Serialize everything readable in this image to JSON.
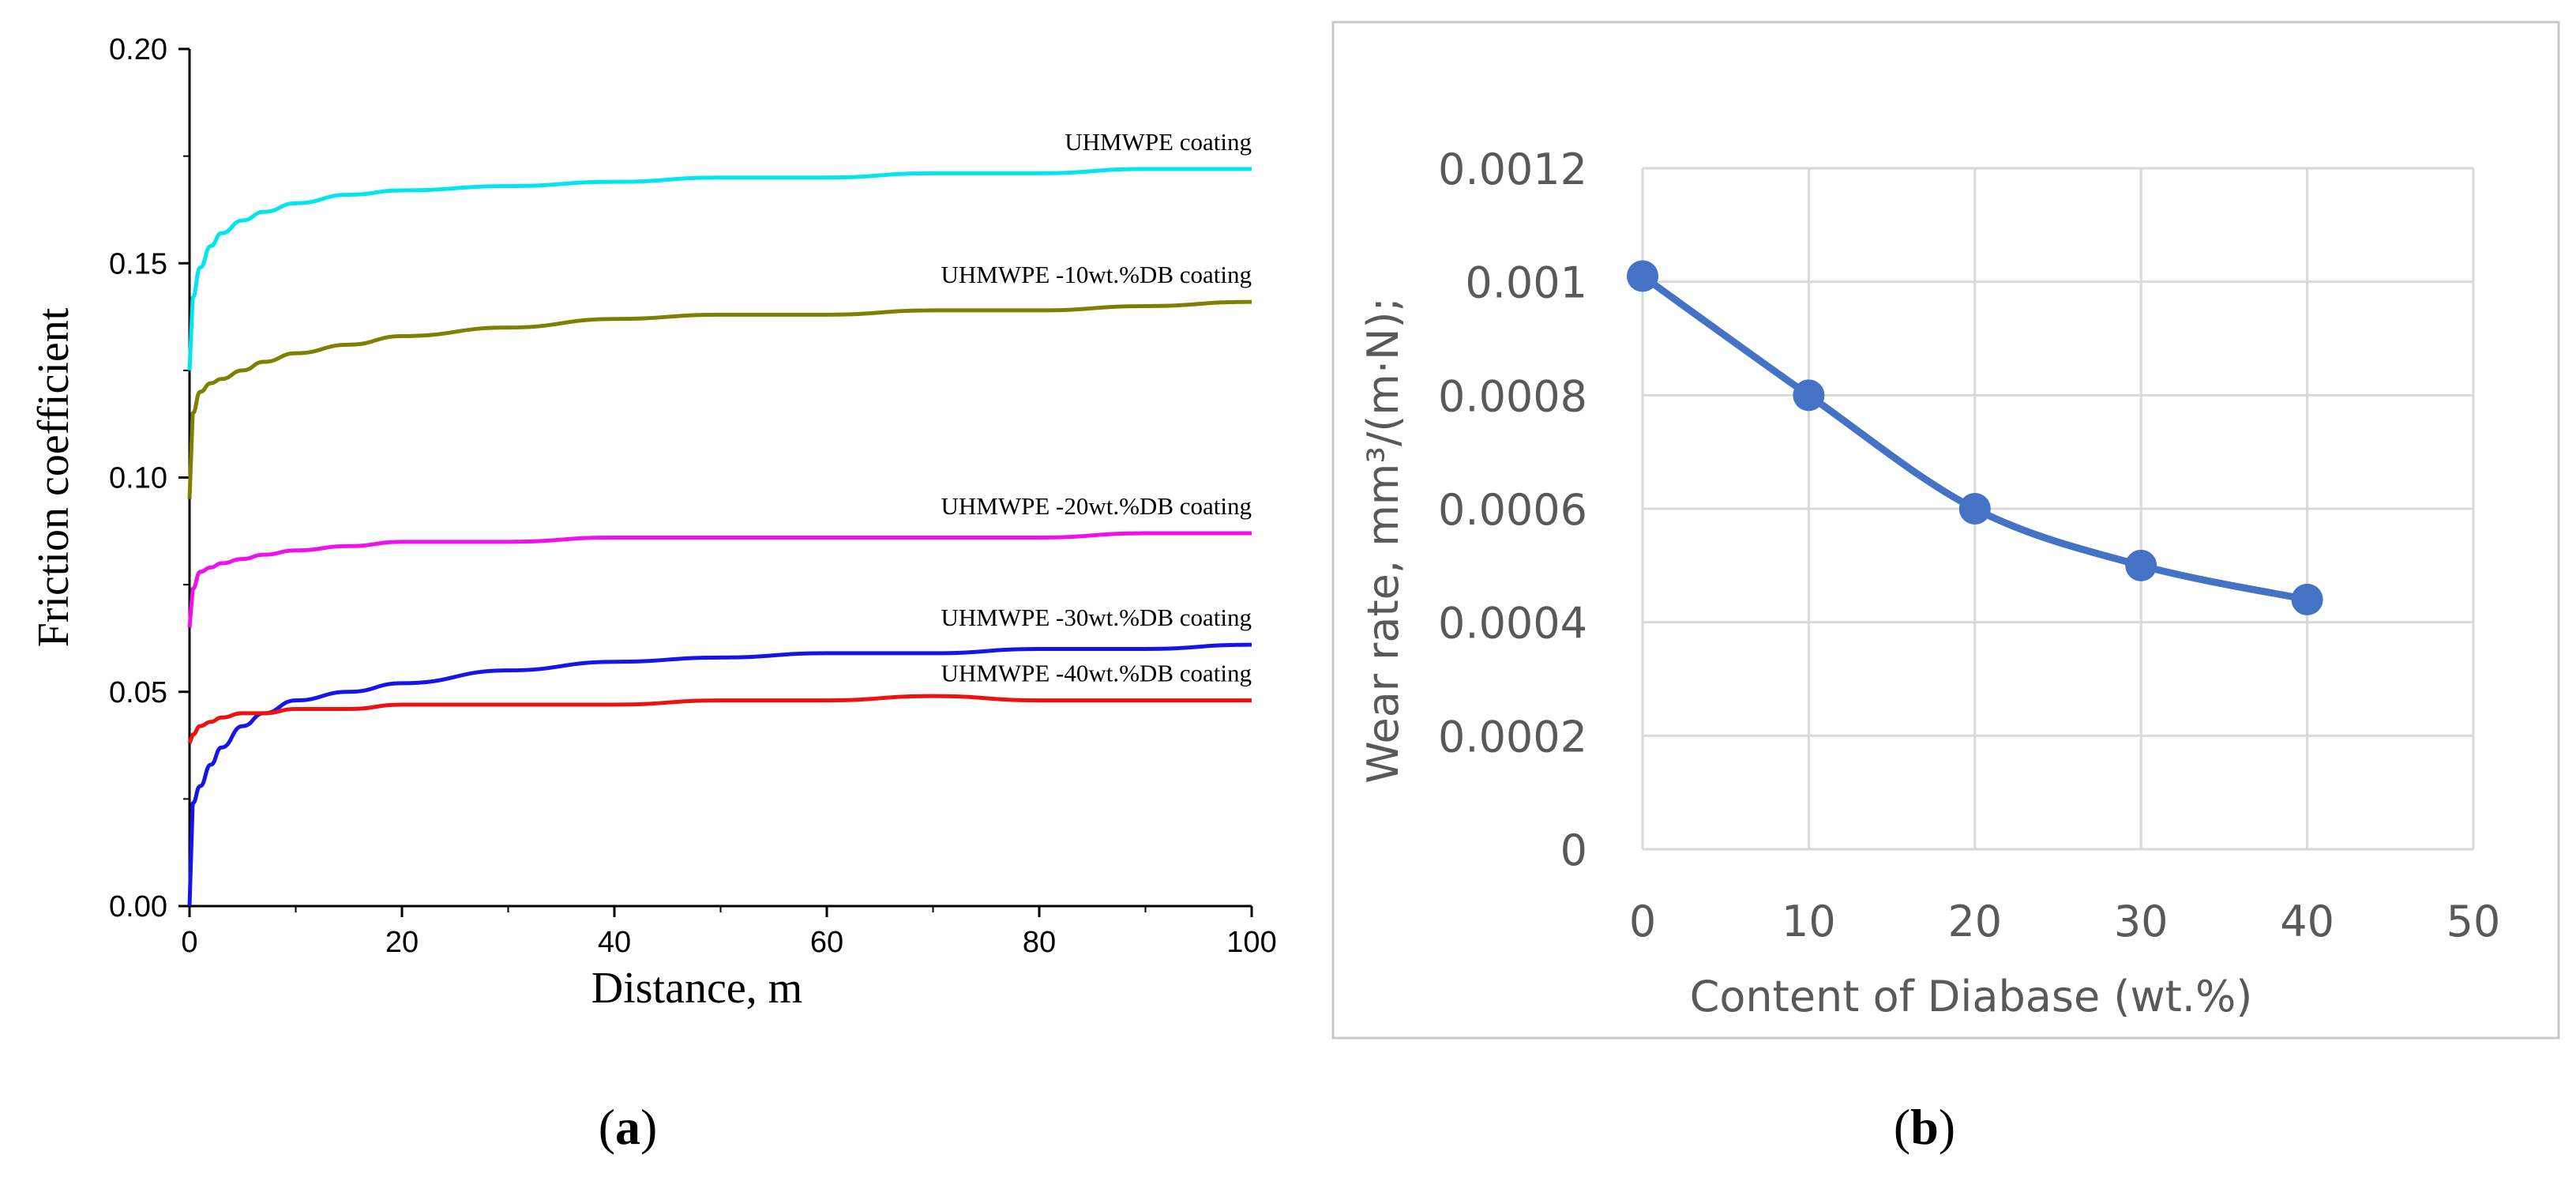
{
  "panels": {
    "a_caption": "a",
    "b_caption": "b"
  },
  "chart_data": [
    {
      "type": "line",
      "panel": "a",
      "title": "",
      "xlabel": "Distance, m",
      "ylabel": "Friction coefficient",
      "xlim": [
        0,
        100
      ],
      "ylim": [
        0,
        0.2
      ],
      "xticks": [
        "0",
        "20",
        "40",
        "60",
        "80",
        "100"
      ],
      "yticks": [
        "0.00",
        "0.05",
        "0.10",
        "0.15",
        "0.20"
      ],
      "grid": false,
      "legend": "inline labels near curve ends",
      "x": [
        0,
        0.3,
        1,
        2,
        3,
        5,
        7,
        10,
        15,
        20,
        30,
        40,
        50,
        60,
        70,
        80,
        90,
        100
      ],
      "series": [
        {
          "name": "UHMWPE coating",
          "color": "#00e5ee",
          "values": [
            0.125,
            0.142,
            0.149,
            0.154,
            0.157,
            0.16,
            0.162,
            0.164,
            0.166,
            0.167,
            0.168,
            0.169,
            0.17,
            0.17,
            0.171,
            0.171,
            0.172,
            0.172
          ]
        },
        {
          "name": "UHMWPE -10wt.%DB coating",
          "color": "#808000",
          "values": [
            0.095,
            0.115,
            0.12,
            0.122,
            0.123,
            0.125,
            0.127,
            0.129,
            0.131,
            0.133,
            0.135,
            0.137,
            0.138,
            0.138,
            0.139,
            0.139,
            0.14,
            0.141
          ]
        },
        {
          "name": "UHMWPE -20wt.%DB coating",
          "color": "#ee11ee",
          "values": [
            0.065,
            0.074,
            0.078,
            0.079,
            0.08,
            0.081,
            0.082,
            0.083,
            0.084,
            0.085,
            0.085,
            0.086,
            0.086,
            0.086,
            0.086,
            0.086,
            0.087,
            0.087
          ]
        },
        {
          "name": "UHMWPE -30wt.%DB coating",
          "color": "#1515e6",
          "values": [
            0.0,
            0.024,
            0.028,
            0.033,
            0.037,
            0.042,
            0.045,
            0.048,
            0.05,
            0.052,
            0.055,
            0.057,
            0.058,
            0.059,
            0.059,
            0.06,
            0.06,
            0.061
          ]
        },
        {
          "name": "UHMWPE -40wt.%DB coating",
          "color": "#ee1111",
          "values": [
            0.038,
            0.04,
            0.042,
            0.043,
            0.044,
            0.045,
            0.045,
            0.046,
            0.046,
            0.047,
            0.047,
            0.047,
            0.048,
            0.048,
            0.049,
            0.048,
            0.048,
            0.048
          ]
        }
      ]
    },
    {
      "type": "line",
      "panel": "b",
      "title": "",
      "xlabel": "Content of Diabase (wt.%)",
      "ylabel": "Wear rate, mm³/(m·N);",
      "xlim": [
        0,
        50
      ],
      "ylim": [
        0,
        0.0012
      ],
      "xticks": [
        "0",
        "10",
        "20",
        "30",
        "40",
        "50"
      ],
      "yticks": [
        "0",
        "0.0002",
        "0.0004",
        "0.0006",
        "0.0008",
        "0.001",
        "0.0012"
      ],
      "grid": true,
      "legend": "none",
      "series": [
        {
          "name": "",
          "color": "#4472c4",
          "x": [
            0,
            10,
            20,
            30,
            40
          ],
          "values": [
            0.00101,
            0.0008,
            0.0006,
            0.0005,
            0.00044
          ]
        }
      ]
    }
  ]
}
